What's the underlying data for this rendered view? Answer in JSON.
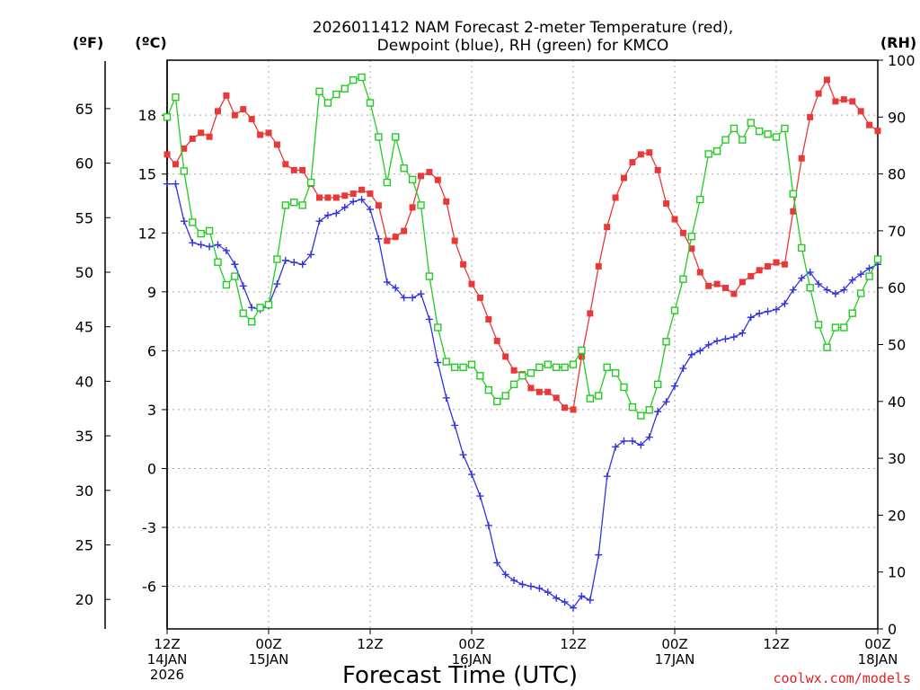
{
  "chart_data": {
    "type": "line",
    "title_line1": "2026011412 NAM Forecast 2-meter Temperature (red),",
    "title_line2": "Dewpoint (blue), RH (green) for KMCO",
    "xlabel": "Forecast Time (UTC)",
    "credit": "coolwx.com/models",
    "axis_units": {
      "fahrenheit": "(ºF)",
      "celsius": "(ºC)",
      "rh": "(RH)"
    },
    "celsius_ticks": [
      "-6",
      "-3",
      "0",
      "3",
      "6",
      "9",
      "12",
      "15",
      "18"
    ],
    "fahrenheit_ticks": [
      "20",
      "25",
      "30",
      "35",
      "40",
      "45",
      "50",
      "55",
      "60",
      "65"
    ],
    "rh_ticks": [
      "0",
      "10",
      "20",
      "30",
      "40",
      "50",
      "60",
      "70",
      "80",
      "90",
      "100"
    ],
    "celsius_range": [
      -8.17,
      20.8
    ],
    "rh_range": [
      0,
      100
    ],
    "x_range_hours": [
      0,
      84
    ],
    "x_ticks": [
      {
        "hour": 0,
        "line1": "12Z",
        "line2": "14JAN",
        "line3": "2026"
      },
      {
        "hour": 12,
        "line1": "00Z",
        "line2": "15JAN",
        "line3": ""
      },
      {
        "hour": 24,
        "line1": "12Z",
        "line2": "",
        "line3": ""
      },
      {
        "hour": 36,
        "line1": "00Z",
        "line2": "16JAN",
        "line3": ""
      },
      {
        "hour": 48,
        "line1": "12Z",
        "line2": "",
        "line3": ""
      },
      {
        "hour": 60,
        "line1": "00Z",
        "line2": "17JAN",
        "line3": ""
      },
      {
        "hour": 72,
        "line1": "12Z",
        "line2": "",
        "line3": ""
      },
      {
        "hour": 84,
        "line1": "00Z",
        "line2": "18JAN",
        "line3": ""
      }
    ],
    "series": [
      {
        "name": "Temperature",
        "axis": "celsius",
        "color": "#e83838",
        "marker": "filled-square",
        "values": [
          16.0,
          15.5,
          16.3,
          16.8,
          17.1,
          16.9,
          18.2,
          19.0,
          18.0,
          18.3,
          17.8,
          17.0,
          17.1,
          16.5,
          15.5,
          15.2,
          15.2,
          14.5,
          13.8,
          13.8,
          13.8,
          13.9,
          14.0,
          14.2,
          14.0,
          13.4,
          11.6,
          11.8,
          12.1,
          13.3,
          14.9,
          15.1,
          14.7,
          13.6,
          11.6,
          10.4,
          9.4,
          8.7,
          7.6,
          6.5,
          5.7,
          5.0,
          4.8,
          4.1,
          3.9,
          3.9,
          3.6,
          3.1,
          3.0,
          5.7,
          7.9,
          10.3,
          12.3,
          13.8,
          14.8,
          15.6,
          16.0,
          16.1,
          15.2,
          13.5,
          12.7,
          12.0,
          11.2,
          10.0,
          9.3,
          9.4,
          9.2,
          8.9,
          9.5,
          9.8,
          10.1,
          10.3,
          10.5,
          10.4,
          13.1,
          15.8,
          17.9,
          19.1,
          19.8,
          18.7,
          18.8,
          18.7,
          18.2,
          17.5,
          17.2
        ]
      },
      {
        "name": "Dewpoint",
        "axis": "celsius",
        "color": "#3333dd",
        "marker": "plus",
        "values": [
          14.5,
          14.5,
          12.6,
          11.5,
          11.4,
          11.3,
          11.4,
          11.1,
          10.4,
          9.3,
          8.2,
          8.1,
          8.3,
          9.4,
          10.6,
          10.5,
          10.4,
          10.9,
          12.6,
          12.9,
          13.0,
          13.3,
          13.6,
          13.7,
          13.2,
          11.7,
          9.5,
          9.2,
          8.7,
          8.7,
          8.9,
          7.6,
          5.4,
          3.6,
          2.2,
          0.7,
          -0.3,
          -1.4,
          -2.9,
          -4.8,
          -5.4,
          -5.7,
          -5.9,
          -6.0,
          -6.1,
          -6.3,
          -6.6,
          -6.8,
          -7.1,
          -6.5,
          -6.7,
          -4.4,
          -0.4,
          1.1,
          1.4,
          1.4,
          1.2,
          1.6,
          2.9,
          3.4,
          4.2,
          5.1,
          5.8,
          6.0,
          6.3,
          6.5,
          6.6,
          6.7,
          6.9,
          7.7,
          7.9,
          8.0,
          8.1,
          8.4,
          9.1,
          9.7,
          10.0,
          9.4,
          9.1,
          8.9,
          9.1,
          9.6,
          9.9,
          10.2,
          10.4
        ]
      },
      {
        "name": "Relative Humidity",
        "axis": "rh",
        "color": "#22cc22",
        "marker": "open-square",
        "values": [
          90,
          93.5,
          80.5,
          71.5,
          69.5,
          70,
          64.5,
          60.5,
          62,
          55.5,
          54,
          56.5,
          57,
          65,
          74.5,
          75,
          74.5,
          78.5,
          94.5,
          92.5,
          94,
          95,
          96.5,
          97,
          92.5,
          86.5,
          78.5,
          86.5,
          81,
          79,
          74.5,
          62,
          53,
          47,
          46,
          46,
          46.5,
          44.5,
          42,
          40,
          41,
          43,
          44.5,
          45,
          46,
          46.5,
          46,
          46,
          46.5,
          49,
          40.5,
          41,
          46,
          45,
          42.5,
          39,
          37.5,
          38.5,
          43,
          50.5,
          56,
          61.5,
          69,
          75.5,
          83.5,
          84,
          86,
          88,
          86,
          89,
          87.5,
          87,
          86.5,
          88,
          76.5,
          67,
          60,
          53.5,
          49.5,
          53,
          53,
          55.5,
          59,
          62,
          65
        ]
      }
    ]
  }
}
